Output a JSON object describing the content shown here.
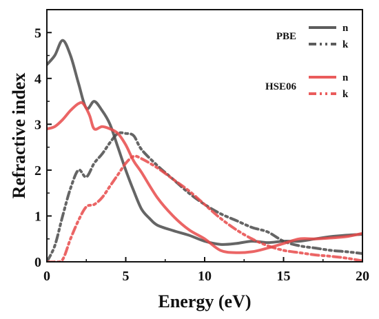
{
  "chart_data": {
    "type": "line",
    "xlabel": "Energy (eV)",
    "ylabel": "Refractive index",
    "xlim": [
      0,
      20
    ],
    "ylim": [
      0,
      5.5
    ],
    "xticks": [
      0,
      5,
      10,
      15,
      20
    ],
    "yticks": [
      0,
      1,
      2,
      3,
      4,
      5
    ],
    "grid": false,
    "legend_position": "top-right",
    "legend_groups": [
      {
        "label": "PBE",
        "entries": [
          "n",
          "k"
        ]
      },
      {
        "label": "HSE06",
        "entries": [
          "n",
          "k"
        ]
      }
    ],
    "series": [
      {
        "group": "PBE",
        "label": "n",
        "color": "#4a4a4a",
        "dash": "solid",
        "x": [
          0,
          0.5,
          1.0,
          1.5,
          2.0,
          2.5,
          3.0,
          3.5,
          4.0,
          4.5,
          5.0,
          5.5,
          6.0,
          6.5,
          7.0,
          8.0,
          9.0,
          10.0,
          11.0,
          12.0,
          13.0,
          14.0,
          15.0,
          16.0,
          17.0,
          18.0,
          19.0,
          20.0
        ],
        "y": [
          4.3,
          4.5,
          4.83,
          4.5,
          3.9,
          3.35,
          3.5,
          3.3,
          3.0,
          2.5,
          2.0,
          1.55,
          1.15,
          0.95,
          0.8,
          0.68,
          0.58,
          0.45,
          0.38,
          0.4,
          0.45,
          0.42,
          0.45,
          0.45,
          0.5,
          0.55,
          0.58,
          0.6
        ]
      },
      {
        "group": "PBE",
        "label": "k",
        "color": "#4a4a4a",
        "dash": "dash-dot-dot",
        "x": [
          0,
          0.5,
          1.0,
          1.5,
          2.0,
          2.5,
          3.0,
          3.5,
          4.0,
          4.5,
          5.0,
          5.5,
          6.0,
          7.0,
          8.0,
          9.0,
          10.0,
          11.0,
          12.0,
          13.0,
          14.0,
          15.0,
          16.0,
          17.0,
          18.0,
          19.0,
          20.0
        ],
        "y": [
          0.0,
          0.35,
          1.0,
          1.6,
          2.0,
          1.85,
          2.15,
          2.35,
          2.6,
          2.8,
          2.8,
          2.75,
          2.45,
          2.1,
          1.8,
          1.5,
          1.25,
          1.05,
          0.9,
          0.75,
          0.65,
          0.45,
          0.35,
          0.3,
          0.25,
          0.22,
          0.18
        ]
      },
      {
        "group": "HSE06",
        "label": "n",
        "color": "#e84a4a",
        "dash": "solid",
        "x": [
          0,
          0.5,
          1.0,
          1.5,
          2.0,
          2.3,
          2.7,
          3.0,
          3.5,
          4.0,
          4.5,
          5.0,
          5.5,
          6.0,
          7.0,
          8.0,
          9.0,
          10.0,
          11.0,
          12.0,
          13.0,
          14.0,
          15.0,
          16.0,
          17.0,
          18.0,
          19.0,
          20.0
        ],
        "y": [
          2.9,
          2.95,
          3.1,
          3.3,
          3.45,
          3.45,
          3.2,
          2.9,
          2.95,
          2.9,
          2.8,
          2.55,
          2.2,
          1.95,
          1.4,
          1.0,
          0.7,
          0.5,
          0.25,
          0.2,
          0.22,
          0.3,
          0.4,
          0.5,
          0.5,
          0.52,
          0.55,
          0.62
        ]
      },
      {
        "group": "HSE06",
        "label": "k",
        "color": "#e84a4a",
        "dash": "dash-dot-dot",
        "x": [
          0,
          0.5,
          1.0,
          1.5,
          2.0,
          2.5,
          3.0,
          3.5,
          4.0,
          4.5,
          5.0,
          5.5,
          6.0,
          7.0,
          8.0,
          9.0,
          10.0,
          11.0,
          12.0,
          13.0,
          14.0,
          15.0,
          16.0,
          17.0,
          18.0,
          19.0,
          20.0
        ],
        "y": [
          0.0,
          0.0,
          0.05,
          0.5,
          0.9,
          1.2,
          1.25,
          1.4,
          1.65,
          1.9,
          2.15,
          2.3,
          2.25,
          2.05,
          1.8,
          1.55,
          1.25,
          0.95,
          0.7,
          0.5,
          0.35,
          0.25,
          0.2,
          0.15,
          0.12,
          0.08,
          0.02
        ]
      }
    ]
  }
}
